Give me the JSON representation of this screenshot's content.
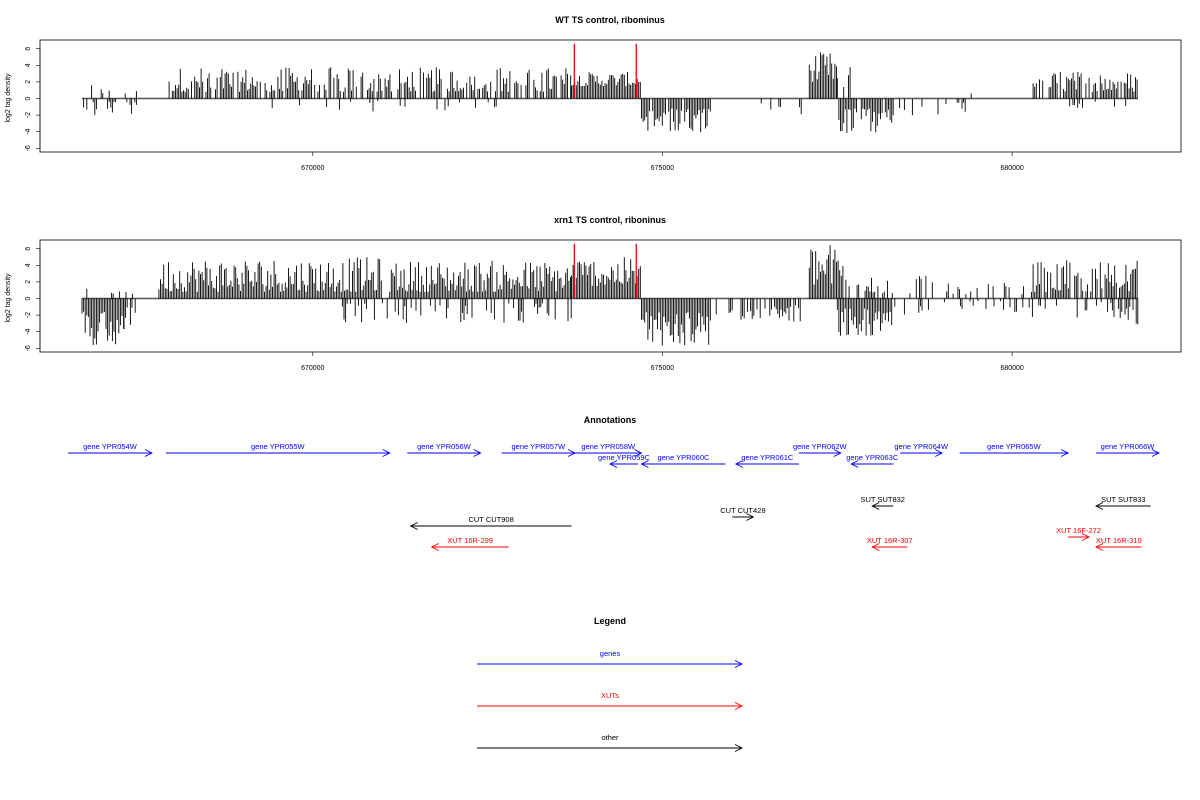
{
  "chart_data": [
    {
      "type": "bar",
      "title": "WT TS control, ribominus",
      "ylabel": "log2 tag density",
      "xlabel": "",
      "xlim": [
        666700,
        681800
      ],
      "ylim": [
        -6,
        7
      ],
      "xticks": [
        "670000",
        "675000",
        "680000"
      ],
      "xtick_values": [
        670000,
        675000,
        680000
      ],
      "yticks": [
        "6",
        "4",
        "2",
        "0",
        "-2",
        "-4",
        "-6"
      ],
      "ytick_values": [
        6,
        4,
        2,
        0,
        -2,
        -4,
        -6
      ],
      "grid": false,
      "markers": {
        "color": "#ff0000",
        "x": [
          673740,
          674625
        ],
        "y": 6.6
      },
      "series": [
        {
          "strand": "plus",
          "color": "#000000",
          "segments": [
            {
              "from": 666700,
              "to": 667500,
              "low": 0.5,
              "high": 1.8,
              "density": 0.25
            },
            {
              "from": 667900,
              "to": 673700,
              "low": 0.8,
              "high": 3.8,
              "density": 0.75
            },
            {
              "from": 673700,
              "to": 674700,
              "low": 1.5,
              "high": 3.2,
              "density": 1.0
            },
            {
              "from": 676100,
              "to": 676200,
              "low": 0.8,
              "high": 1.6,
              "density": 0.2
            },
            {
              "from": 677100,
              "to": 677500,
              "low": 2.0,
              "high": 5.6,
              "density": 1.0
            },
            {
              "from": 677500,
              "to": 677700,
              "low": 1.0,
              "high": 5.8,
              "density": 0.6
            },
            {
              "from": 679300,
              "to": 679500,
              "low": 0.5,
              "high": 1.2,
              "density": 0.2
            },
            {
              "from": 680300,
              "to": 681800,
              "low": 0.8,
              "high": 3.3,
              "density": 0.75
            }
          ]
        },
        {
          "strand": "minus",
          "color": "#000000",
          "segments": [
            {
              "from": 666700,
              "to": 667500,
              "low": 0.4,
              "high": 2.4,
              "density": 0.35
            },
            {
              "from": 669100,
              "to": 672800,
              "low": 0.3,
              "high": 1.8,
              "density": 0.1
            },
            {
              "from": 674700,
              "to": 675700,
              "low": 1.2,
              "high": 4.2,
              "density": 0.85
            },
            {
              "from": 676000,
              "to": 677000,
              "low": 0.5,
              "high": 2.2,
              "density": 0.2
            },
            {
              "from": 677500,
              "to": 678300,
              "low": 1.2,
              "high": 4.3,
              "density": 0.9
            },
            {
              "from": 678300,
              "to": 679400,
              "low": 0.5,
              "high": 2.2,
              "density": 0.2
            },
            {
              "from": 680800,
              "to": 681800,
              "low": 0.3,
              "high": 1.2,
              "density": 0.1
            }
          ]
        }
      ]
    },
    {
      "type": "bar",
      "title": "xrn1 TS control, riboninus",
      "ylabel": "log2 tag density",
      "xlabel": "",
      "xlim": [
        666700,
        681800
      ],
      "ylim": [
        -6,
        7
      ],
      "xticks": [
        "670000",
        "675000",
        "680000"
      ],
      "xtick_values": [
        670000,
        675000,
        680000
      ],
      "yticks": [
        "6",
        "4",
        "2",
        "0",
        "-2",
        "-4",
        "-6"
      ],
      "ytick_values": [
        6,
        4,
        2,
        0,
        -2,
        -4,
        -6
      ],
      "grid": false,
      "markers": {
        "color": "#ff0000",
        "x": [
          673740,
          674625
        ],
        "y": 6.6
      },
      "series": [
        {
          "strand": "plus",
          "color": "#000000",
          "segments": [
            {
              "from": 666700,
              "to": 667000,
              "low": 0.3,
              "high": 1.2,
              "density": 0.2
            },
            {
              "from": 667100,
              "to": 667500,
              "low": 0.3,
              "high": 1.2,
              "density": 0.2
            },
            {
              "from": 667800,
              "to": 671000,
              "low": 0.8,
              "high": 5.0,
              "density": 1.0
            },
            {
              "from": 671100,
              "to": 673700,
              "low": 0.8,
              "high": 4.6,
              "density": 1.0
            },
            {
              "from": 673700,
              "to": 674700,
              "low": 1.5,
              "high": 5.0,
              "density": 1.0
            },
            {
              "from": 677100,
              "to": 677600,
              "low": 1.5,
              "high": 6.7,
              "density": 1.0
            },
            {
              "from": 677600,
              "to": 680300,
              "low": 0.5,
              "high": 2.8,
              "density": 0.35
            },
            {
              "from": 680300,
              "to": 681800,
              "low": 0.8,
              "high": 4.6,
              "density": 0.85
            }
          ]
        },
        {
          "strand": "minus",
          "color": "#000000",
          "segments": [
            {
              "from": 666700,
              "to": 667300,
              "low": 1.5,
              "high": 5.8,
              "density": 1.0
            },
            {
              "from": 667300,
              "to": 667500,
              "low": 1.0,
              "high": 4.0,
              "density": 0.6
            },
            {
              "from": 670400,
              "to": 673700,
              "low": 0.5,
              "high": 3.0,
              "density": 0.35
            },
            {
              "from": 674700,
              "to": 675700,
              "low": 1.5,
              "high": 5.8,
              "density": 1.0
            },
            {
              "from": 675700,
              "to": 676000,
              "low": 0.5,
              "high": 2.0,
              "density": 0.3
            },
            {
              "from": 676100,
              "to": 677000,
              "low": 0.8,
              "high": 3.0,
              "density": 0.7
            },
            {
              "from": 677500,
              "to": 678300,
              "low": 1.2,
              "high": 4.6,
              "density": 1.0
            },
            {
              "from": 678300,
              "to": 681500,
              "low": 0.3,
              "high": 2.3,
              "density": 0.25
            },
            {
              "from": 681500,
              "to": 681800,
              "low": 1.0,
              "high": 3.3,
              "density": 0.6
            }
          ]
        }
      ]
    }
  ],
  "annotations": {
    "title": "Annotations",
    "items": [
      {
        "label": "gene YPR054W",
        "start": 666500,
        "end": 667700,
        "strand": "+",
        "color": "#0000ff",
        "row": 0
      },
      {
        "label": "gene YPR055W",
        "start": 667900,
        "end": 671100,
        "strand": "+",
        "color": "#0000ff",
        "row": 0
      },
      {
        "label": "gene YPR056W",
        "start": 671350,
        "end": 672400,
        "strand": "+",
        "color": "#0000ff",
        "row": 0
      },
      {
        "label": "gene YPR057W",
        "start": 672700,
        "end": 673750,
        "strand": "+",
        "color": "#0000ff",
        "row": 0
      },
      {
        "label": "gene YPR058W",
        "start": 673750,
        "end": 674700,
        "strand": "+",
        "color": "#0000ff",
        "row": 0
      },
      {
        "label": "gene YPR059C",
        "start": 674250,
        "end": 674650,
        "strand": "-",
        "color": "#0000ff",
        "row": 1
      },
      {
        "label": "gene YPR060C",
        "start": 674700,
        "end": 675900,
        "strand": "-",
        "color": "#0000ff",
        "row": 1
      },
      {
        "label": "gene YPR061C",
        "start": 676050,
        "end": 676950,
        "strand": "-",
        "color": "#0000ff",
        "row": 1
      },
      {
        "label": "gene YPR062W",
        "start": 676950,
        "end": 677550,
        "strand": "+",
        "color": "#0000ff",
        "row": 0
      },
      {
        "label": "gene YPR063C",
        "start": 677700,
        "end": 678300,
        "strand": "-",
        "color": "#0000ff",
        "row": 1
      },
      {
        "label": "gene YPR064W",
        "start": 678400,
        "end": 679000,
        "strand": "+",
        "color": "#0000ff",
        "row": 0
      },
      {
        "label": "gene YPR065W",
        "start": 679250,
        "end": 680800,
        "strand": "+",
        "color": "#0000ff",
        "row": 0
      },
      {
        "label": "gene YPR066W",
        "start": 681200,
        "end": 682100,
        "strand": "+",
        "color": "#0000ff",
        "row": 0
      },
      {
        "label": "SUT SUT832",
        "start": 678000,
        "end": 678300,
        "strand": "-",
        "color": "#000000",
        "row": 3
      },
      {
        "label": "SUT SUT833",
        "start": 681200,
        "end": 681980,
        "strand": "-",
        "color": "#000000",
        "row": 3
      },
      {
        "label": "CUT CUT428",
        "start": 676000,
        "end": 676300,
        "strand": "+",
        "color": "#000000",
        "row": 4
      },
      {
        "label": "CUT CUT908",
        "start": 671400,
        "end": 673700,
        "strand": "-",
        "color": "#000000",
        "row": 5
      },
      {
        "label": "XUT 16F-272",
        "start": 680800,
        "end": 681100,
        "strand": "+",
        "color": "#ff0000",
        "row": 6
      },
      {
        "label": "XUT 16R-299",
        "start": 671700,
        "end": 672800,
        "strand": "-",
        "color": "#ff0000",
        "row": 7
      },
      {
        "label": "XUT 16R-307",
        "start": 678000,
        "end": 678500,
        "strand": "-",
        "color": "#ff0000",
        "row": 7
      },
      {
        "label": "XUT 16R-310",
        "start": 681200,
        "end": 681850,
        "strand": "-",
        "color": "#ff0000",
        "row": 7
      }
    ]
  },
  "legend": {
    "title": "Legend",
    "items": [
      {
        "label": "genes",
        "color": "#0000ff"
      },
      {
        "label": "XUTs",
        "color": "#ff0000"
      },
      {
        "label": "other",
        "color": "#000000"
      }
    ]
  }
}
